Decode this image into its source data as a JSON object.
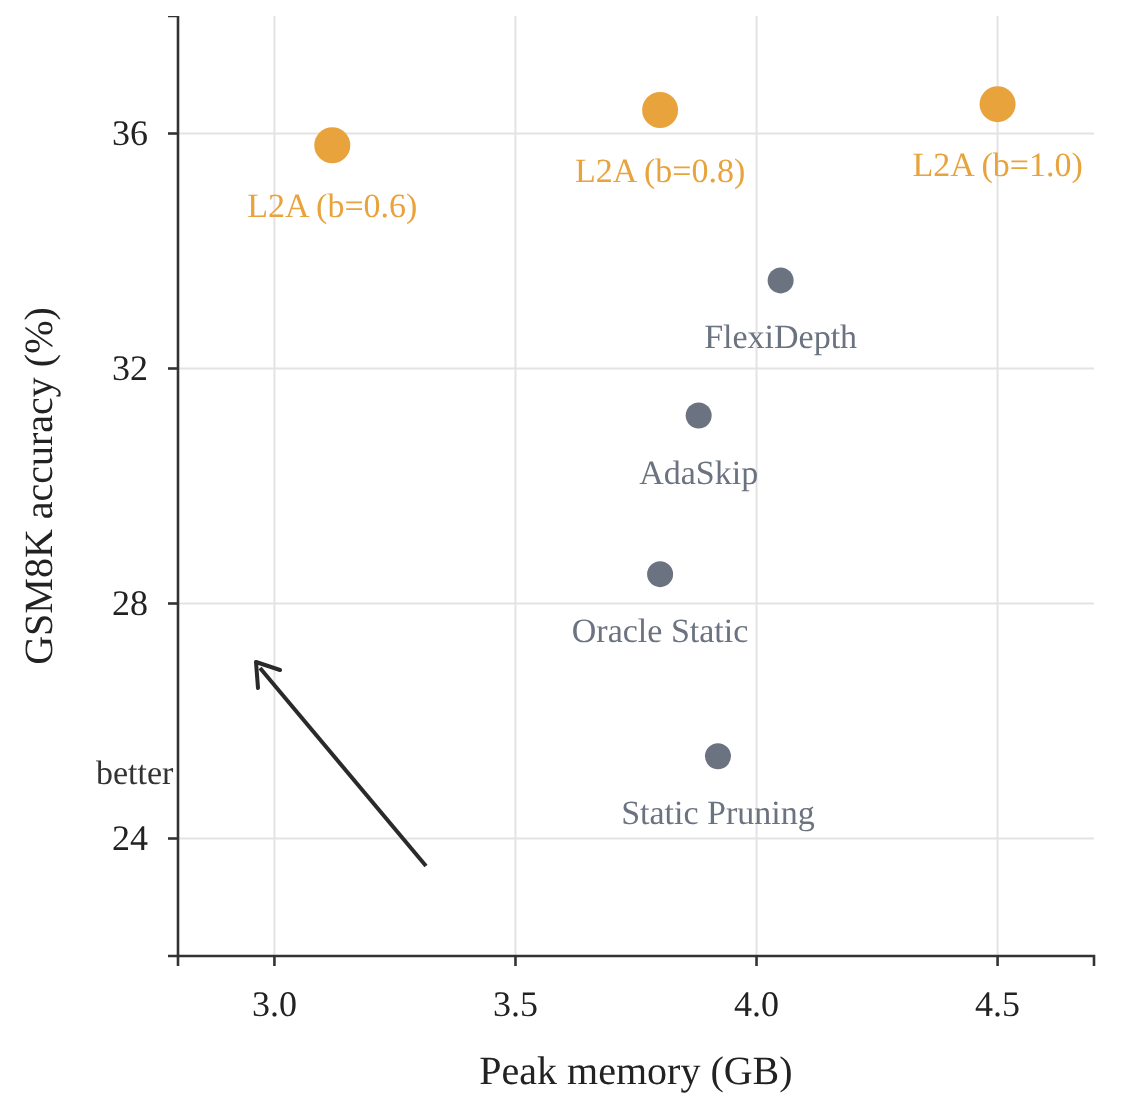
{
  "chart_data": {
    "type": "scatter",
    "xlabel": "Peak memory (GB)",
    "ylabel": "GSM8K accuracy (%)",
    "xlim": [
      2.8,
      4.7
    ],
    "ylim": [
      22,
      38
    ],
    "xticks": [
      {
        "value": 3.0,
        "label": "3.0"
      },
      {
        "value": 3.5,
        "label": "3.5"
      },
      {
        "value": 4.0,
        "label": "4.0"
      },
      {
        "value": 4.5,
        "label": "4.5"
      }
    ],
    "yticks": [
      24,
      28,
      32,
      36
    ],
    "grid": true,
    "marker": "circle",
    "series": [
      {
        "name": "L2A (b=0.6)",
        "color": "#e8a33d",
        "x": [
          3.12
        ],
        "values": [
          35.8
        ]
      },
      {
        "name": "L2A (b=0.8)",
        "color": "#e8a33d",
        "x": [
          3.8
        ],
        "values": [
          36.4
        ]
      },
      {
        "name": "L2A (b=1.0)",
        "color": "#e8a33d",
        "x": [
          4.5
        ],
        "values": [
          36.5
        ]
      },
      {
        "name": "FlexiDepth",
        "color": "#6b7280",
        "x": [
          4.05
        ],
        "values": [
          33.5
        ]
      },
      {
        "name": "AdaSkip",
        "color": "#6b7280",
        "x": [
          3.88
        ],
        "values": [
          31.2
        ]
      },
      {
        "name": "Oracle Static",
        "color": "#6b7280",
        "x": [
          3.8
        ],
        "values": [
          28.5
        ]
      },
      {
        "name": "Static Pruning",
        "color": "#6b7280",
        "x": [
          3.92
        ],
        "values": [
          25.4
        ]
      }
    ],
    "annotations": [
      "better"
    ]
  }
}
